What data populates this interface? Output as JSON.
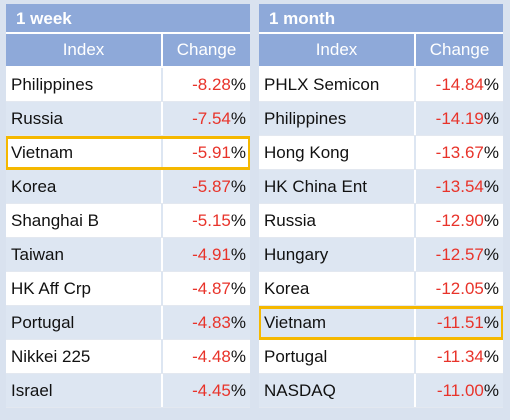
{
  "tables": [
    {
      "title": "1 week",
      "col_index": "Index",
      "col_change": "Change",
      "rows": [
        {
          "name": "Philippines",
          "value": "-8.28",
          "unit": "%"
        },
        {
          "name": "Russia",
          "value": "-7.54",
          "unit": "%"
        },
        {
          "name": "Vietnam",
          "value": "-5.91",
          "unit": "%"
        },
        {
          "name": "Korea",
          "value": "-5.87",
          "unit": "%"
        },
        {
          "name": "Shanghai B",
          "value": "-5.15",
          "unit": "%"
        },
        {
          "name": "Taiwan",
          "value": "-4.91",
          "unit": "%"
        },
        {
          "name": "HK Aff Crp",
          "value": "-4.87",
          "unit": "%"
        },
        {
          "name": "Portugal",
          "value": "-4.83",
          "unit": "%"
        },
        {
          "name": "Nikkei 225",
          "value": "-4.48",
          "unit": "%"
        },
        {
          "name": "Israel",
          "value": "-4.45",
          "unit": "%"
        }
      ]
    },
    {
      "title": "1 month",
      "col_index": "Index",
      "col_change": "Change",
      "rows": [
        {
          "name": "PHLX Semicon",
          "value": "-14.84",
          "unit": "%"
        },
        {
          "name": "Philippines",
          "value": "-14.19",
          "unit": "%"
        },
        {
          "name": "Hong Kong",
          "value": "-13.67",
          "unit": "%"
        },
        {
          "name": "HK China Ent",
          "value": "-13.54",
          "unit": "%"
        },
        {
          "name": "Russia",
          "value": "-12.90",
          "unit": "%"
        },
        {
          "name": "Hungary",
          "value": "-12.57",
          "unit": "%"
        },
        {
          "name": "Korea",
          "value": "-12.05",
          "unit": "%"
        },
        {
          "name": "Vietnam",
          "value": "-11.51",
          "unit": "%"
        },
        {
          "name": "Portugal",
          "value": "-11.34",
          "unit": "%"
        },
        {
          "name": "NASDAQ",
          "value": "-11.00",
          "unit": "%"
        }
      ]
    }
  ],
  "highlight_color": "#f5b800",
  "negative_color": "#e8332a",
  "header_color": "#8ea9d9"
}
